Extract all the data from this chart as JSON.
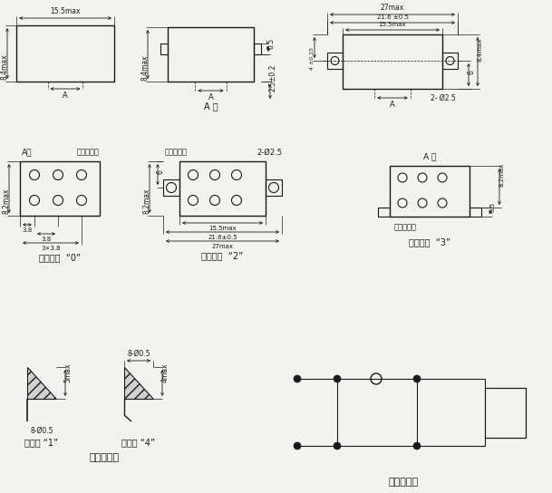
{
  "bg_color": "#f2f2ee",
  "line_color": "#1a1a1a",
  "sections": {
    "tl_label_w": "15.5max",
    "tl_label_h": "8.4max",
    "tl_label_a": "A",
    "tm_label_h": "8.4max",
    "tm_label_a": "A",
    "tm_label_adir": "A 向",
    "tm_label_05": "0.5",
    "tm_label_25": "2.5±0.2",
    "tr_label_27": "27max",
    "tr_label_21": "21.6 ±0.5",
    "tr_label_15": "15.5max",
    "tr_label_4": "4 ±0.15",
    "tr_label_6": "6",
    "tr_label_84": "8.4max",
    "tr_label_25": "2- Ø2.5",
    "tr_label_a": "A",
    "m0_title": "安装方式  “0”",
    "m0_adir": "A向",
    "m0_ins": "着色绦缘子",
    "m0_82": "8.2max",
    "m0_38a": "3.8",
    "m0_38b": "3.8",
    "m0_3x38": "3×3.8",
    "m2_title": "安装方式  “2”",
    "m2_ins": "着色绦缘子",
    "m2_25": "2-Ø2.5",
    "m2_82": "8.2max",
    "m2_6": "6",
    "m2_155": "15.5max",
    "m2_216": "21.6±0.5",
    "m2_27": "27max",
    "m3_title": "安装方式  “3”",
    "m3_adir": "A 向",
    "m3_ins": "着色绦缘子",
    "m3_05": "0.5",
    "m3_82": "8.2max",
    "p1_title": "插针式 “1”",
    "p1_5max": "5max",
    "p1_8d": "8-Ø0.5",
    "p4_title": "焊钉式 “4”",
    "p4_8d": "8-Ø0.5",
    "p4_4max": "4max",
    "lead_title": "引出端型式",
    "circuit_title": "底视电路图"
  }
}
